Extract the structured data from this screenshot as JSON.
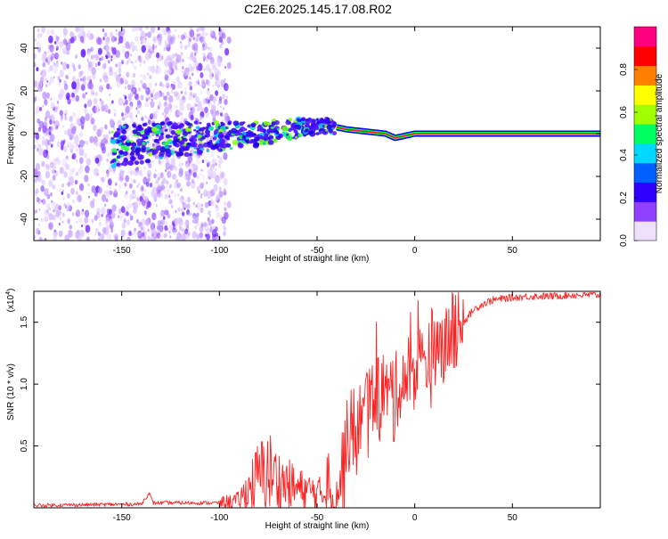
{
  "title": "C2E6.2025.145.17.08.R02",
  "chart_data": [
    {
      "type": "heatmap",
      "xlabel": "Height of straight line (km)",
      "ylabel": "Frequency (Hz)",
      "xlim": [
        -195,
        95
      ],
      "ylim": [
        -50,
        50
      ],
      "xticks": [
        "-150",
        "-100",
        "-50",
        "0",
        "50"
      ],
      "yticks": [
        "-40",
        "-20",
        "0",
        "20",
        "40"
      ],
      "colorbar": {
        "label": "Normalized spectral amplitude",
        "range": [
          0.0,
          1.0
        ],
        "ticks": [
          "0.0",
          "0.2",
          "0.4",
          "0.6",
          "0.8"
        ],
        "colors": [
          "#f0e0ff",
          "#9040ff",
          "#3000ff",
          "#0060ff",
          "#00d8ff",
          "#00ff60",
          "#a0ff00",
          "#ffff00",
          "#ff8000",
          "#ff0000",
          "#ff0080"
        ]
      },
      "trace": {
        "x": [
          -150,
          -130,
          -110,
          -95,
          -80,
          -65,
          -55,
          -45,
          -35,
          -25,
          -15,
          -10,
          -5,
          0,
          10,
          30,
          60,
          95
        ],
        "y": [
          -6,
          -3,
          -2,
          -1,
          0,
          2,
          3,
          4,
          2,
          1,
          0,
          -2,
          -1,
          0,
          0,
          0,
          0,
          0
        ]
      },
      "grid": false
    },
    {
      "type": "line",
      "xlabel": "Height of straight line (km)",
      "ylabel": "SNR (10 * v/v)",
      "scale_label": "(x10",
      "scale_exp": "4",
      "xlim": [
        -195,
        95
      ],
      "ylim": [
        0,
        1.75
      ],
      "xticks": [
        "-150",
        "-100",
        "-50",
        "0",
        "50"
      ],
      "yticks": [
        "0.5",
        "1.0",
        "1.5"
      ],
      "series": [
        {
          "color": "#ff2020",
          "x": [
            -195,
            -140,
            -136,
            -134,
            -100,
            -90,
            -80,
            -75,
            -70,
            -60,
            -50,
            -42,
            -38,
            -35,
            -30,
            -25,
            -20,
            -15,
            -10,
            -5,
            0,
            5,
            10,
            15,
            20,
            25,
            30,
            35,
            40,
            50,
            60,
            70,
            80,
            95
          ],
          "y": [
            0.02,
            0.03,
            0.12,
            0.04,
            0.04,
            0.06,
            0.25,
            0.3,
            0.22,
            0.15,
            0.12,
            0.1,
            0.2,
            0.5,
            0.65,
            0.8,
            0.9,
            0.95,
            0.9,
            1.05,
            1.1,
            1.2,
            1.25,
            1.3,
            1.4,
            1.5,
            1.6,
            1.65,
            1.68,
            1.7,
            1.71,
            1.71,
            1.72,
            1.72
          ]
        }
      ],
      "grid": false
    }
  ]
}
